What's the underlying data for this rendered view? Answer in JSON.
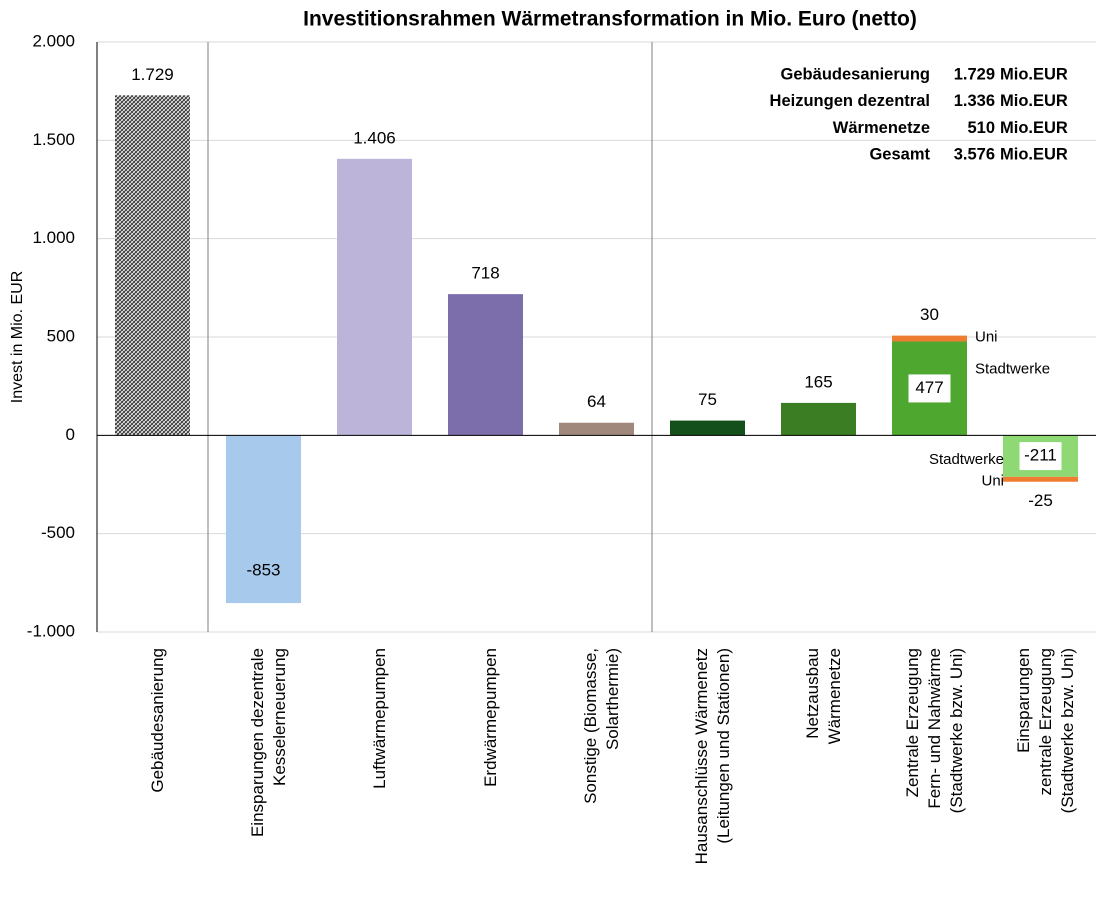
{
  "chart_data": {
    "type": "bar",
    "title": "Investitionsrahmen Wärmetransformation in Mio. Euro (netto)",
    "y_label": "Invest in Mio. EUR",
    "categories": [
      [
        "Gebäudesanierung"
      ],
      [
        "Einsparungen dezentrale",
        "Kesselerneuerung"
      ],
      [
        "Luftwärmepumpen"
      ],
      [
        "Erdwärmepumpen"
      ],
      [
        "Sonstige (Biomasse,",
        "Solarthermie)"
      ],
      [
        "Hausanschlüsse Wärmenetz",
        "(Leitungen und Stationen)"
      ],
      [
        "Netzausbau",
        "Wärmenetze"
      ],
      [
        "Zentrale Erzeugung",
        "Fern- und Nahwärme",
        "(Stadtwerke bzw. Uni)"
      ],
      [
        "Einsparungen",
        "zentrale Erzeugung",
        "(Stadtwerke bzw. Uni)"
      ]
    ],
    "values": [
      1729,
      -853,
      1406,
      718,
      64,
      75,
      165,
      null,
      null
    ],
    "value_labels": [
      "1.729",
      "-853",
      "1.406",
      "718",
      "64",
      "75",
      "165",
      null,
      null
    ],
    "colors": [
      "#404040",
      "#a6c9ec",
      "#bdb5d9",
      "#7b6eab",
      "#a0887c",
      "#13501b",
      "#3a7d22",
      null,
      null
    ],
    "patterns": [
      "hatch",
      null,
      null,
      null,
      null,
      null,
      null,
      null,
      null
    ],
    "segments": [
      {
        "name": "Stadtwerke",
        "values": [
          null,
          null,
          null,
          null,
          null,
          null,
          null,
          477,
          -211
        ],
        "colors": [
          null,
          null,
          null,
          null,
          null,
          null,
          null,
          "#4ea72e",
          "#8ed973"
        ]
      },
      {
        "name": "Uni",
        "values": [
          null,
          null,
          null,
          null,
          null,
          null,
          null,
          30,
          -25
        ],
        "color": "#ed7d31"
      }
    ],
    "ylim": [
      -1000,
      2000
    ],
    "yticks": [
      {
        "value": -1000,
        "label": "-1.000"
      },
      -500,
      0,
      500,
      {
        "value": 1000,
        "label": "1.000"
      },
      {
        "value": 1500,
        "label": "1.500"
      },
      {
        "value": 2000,
        "label": "2.000"
      }
    ],
    "grid": true,
    "summary": [
      {
        "label": "Gebäudesanierung",
        "value": "1.729",
        "unit": "Mio.EUR"
      },
      {
        "label": "Heizungen dezentral",
        "value": "1.336",
        "unit": "Mio.EUR"
      },
      {
        "label": "Wärmenetze",
        "value": "510",
        "unit": "Mio.EUR"
      },
      {
        "label": "Gesamt",
        "value": "3.576",
        "unit": "Mio.EUR"
      }
    ]
  }
}
